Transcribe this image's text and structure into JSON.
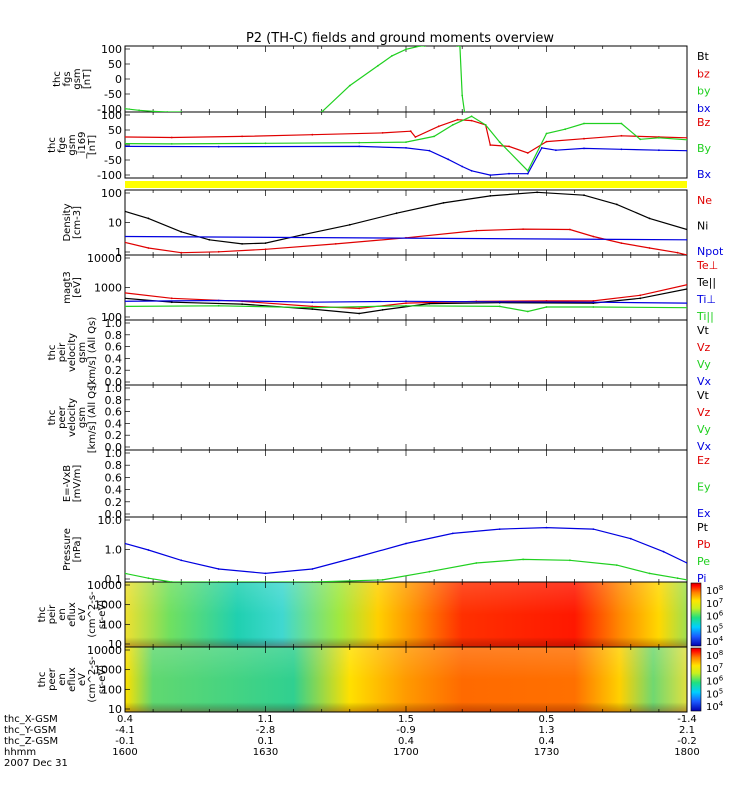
{
  "title": "P2 (TH-C) fields and ground moments overview",
  "colors": {
    "black": "#000000",
    "red": "#e00000",
    "green": "#20d020",
    "blue": "#0000e0",
    "yellow": "#ffff00"
  },
  "panels": [
    {
      "ylabel": [
        "thc",
        "fgs",
        "gsm",
        "[nT]"
      ],
      "ticks": [
        "100",
        "50",
        "0",
        "-50",
        "-100"
      ],
      "legend": [
        {
          "text": "Bt",
          "color": "#000000"
        },
        {
          "text": "bz",
          "color": "#e00000"
        },
        {
          "text": "by",
          "color": "#20d020"
        },
        {
          "text": "bx",
          "color": "#0000e0"
        }
      ]
    },
    {
      "ylabel": [
        "thc",
        "fge",
        "gsm",
        "_i169",
        "[nT]"
      ],
      "ticks": [
        "100",
        "50",
        "0",
        "-50",
        "-100"
      ],
      "legend": [
        {
          "text": "Bz",
          "color": "#e00000"
        },
        {
          "text": "By",
          "color": "#20d020"
        },
        {
          "text": "Bx",
          "color": "#0000e0"
        }
      ]
    },
    {
      "ylabel": [
        "Density",
        "[cm-3]"
      ],
      "ticks": [
        "100",
        "10",
        "1"
      ],
      "legend": [
        {
          "text": "Ne",
          "color": "#e00000"
        },
        {
          "text": "Ni",
          "color": "#000000"
        },
        {
          "text": "Npot",
          "color": "#0000e0"
        }
      ]
    },
    {
      "ylabel": [
        "magt3",
        "[eV]"
      ],
      "ticks": [
        "10000",
        "1000",
        "100"
      ],
      "legend": [
        {
          "text": "Te⊥",
          "color": "#e00000"
        },
        {
          "text": "Te||",
          "color": "#000000"
        },
        {
          "text": "Ti⊥",
          "color": "#0000e0"
        },
        {
          "text": "Ti||",
          "color": "#20d020"
        }
      ]
    },
    {
      "ylabel": [
        "thc",
        "peir",
        "velocity",
        "gsm",
        "[km/s] (All Qs)"
      ],
      "ticks": [
        "1.0",
        "0.8",
        "0.6",
        "0.4",
        "0.2",
        "0.0"
      ],
      "legend": [
        {
          "text": "Vt",
          "color": "#000000"
        },
        {
          "text": "Vz",
          "color": "#e00000"
        },
        {
          "text": "Vy",
          "color": "#20d020"
        },
        {
          "text": "Vx",
          "color": "#0000e0"
        }
      ]
    },
    {
      "ylabel": [
        "thc",
        "peer",
        "velocity",
        "gsm",
        "[km/s] (All Qs)"
      ],
      "ticks": [
        "1.0",
        "0.8",
        "0.6",
        "0.4",
        "0.2",
        "0.0"
      ],
      "legend": [
        {
          "text": "Vt",
          "color": "#000000"
        },
        {
          "text": "Vz",
          "color": "#e00000"
        },
        {
          "text": "Vy",
          "color": "#20d020"
        },
        {
          "text": "Vx",
          "color": "#0000e0"
        }
      ]
    },
    {
      "ylabel": [
        "E=-VxB",
        "[mV/m]"
      ],
      "ticks": [
        "1.0",
        "0.8",
        "0.6",
        "0.4",
        "0.2",
        "0.0"
      ],
      "legend": [
        {
          "text": "Ez",
          "color": "#e00000"
        },
        {
          "text": "Ey",
          "color": "#20d020"
        },
        {
          "text": "Ex",
          "color": "#0000e0"
        }
      ]
    },
    {
      "ylabel": [
        "Pressure",
        "[nPa]"
      ],
      "ticks": [
        "10.0",
        "1.0",
        "0.1"
      ],
      "legend": [
        {
          "text": "Pt",
          "color": "#000000"
        },
        {
          "text": "Pb",
          "color": "#e00000"
        },
        {
          "text": "Pe",
          "color": "#20d020"
        },
        {
          "text": "Pi",
          "color": "#0000e0"
        }
      ]
    },
    {
      "ylabel": [
        "thc",
        "peir",
        "en",
        "eflux",
        "eV",
        "(cm^2-s-",
        "sr-eV)"
      ],
      "ticks": [
        "10000",
        "1000",
        "100",
        "10"
      ],
      "colorbar": [
        "10^8",
        "10^7",
        "10^6",
        "10^5",
        "10^4"
      ]
    },
    {
      "ylabel": [
        "thc",
        "peer",
        "en",
        "eflux",
        "eV",
        "(cm^2-s-",
        "sr-eV)"
      ],
      "ticks": [
        "10000",
        "1000",
        "100",
        "10"
      ],
      "colorbar": [
        "10^8",
        "10^7",
        "10^6",
        "10^5",
        "10^4"
      ]
    }
  ],
  "xaxis": {
    "row_labels": [
      "thc_X-GSM",
      "thc_Y-GSM",
      "thc_Z-GSM",
      "hhmm",
      "2007 Dec 31"
    ],
    "columns": [
      [
        "0.4",
        "-4.1",
        "-0.1",
        "1600"
      ],
      [
        "1.1",
        "-2.8",
        "0.1",
        "1630"
      ],
      [
        "1.5",
        "-0.9",
        "0.4",
        "1700"
      ],
      [
        "0.5",
        "1.3",
        "0.4",
        "1730"
      ],
      [
        "-1.4",
        "2.1",
        "-0.2",
        "1800"
      ]
    ]
  },
  "chart_data": [
    {
      "type": "line",
      "panel": 0,
      "x_unit": "minutes since 16:00",
      "ylim": [
        -100,
        100
      ],
      "series": [
        {
          "name": "by",
          "color": "#20d020",
          "x": [
            0,
            3,
            6,
            9,
            12
          ],
          "y": [
            -90,
            -95,
            -98,
            -100,
            -100
          ]
        },
        {
          "name": "by",
          "color": "#20d020",
          "x": [
            42,
            48,
            54,
            57,
            60,
            63,
            64
          ],
          "y": [
            -100,
            -20,
            40,
            70,
            90,
            100,
            100
          ]
        },
        {
          "name": "by",
          "color": "#20d020",
          "x": [
            71,
            71.5,
            72,
            72.5
          ],
          "y": [
            100,
            100,
            -50,
            -100
          ]
        }
      ]
    },
    {
      "type": "line",
      "panel": 1,
      "x_unit": "minutes since 16:00",
      "ylim": [
        -115,
        115
      ],
      "series": [
        {
          "name": "Bz",
          "color": "#e00000",
          "x": [
            0,
            10,
            25,
            40,
            55,
            61,
            62,
            67,
            71,
            74,
            77,
            78,
            82,
            86,
            90,
            98,
            106,
            114,
            120
          ],
          "y": [
            28,
            26,
            30,
            36,
            42,
            48,
            28,
            65,
            88,
            85,
            70,
            0,
            -5,
            -28,
            12,
            22,
            32,
            28,
            25
          ]
        },
        {
          "name": "By",
          "color": "#20d020",
          "x": [
            0,
            10,
            30,
            50,
            60,
            66,
            70,
            74,
            77,
            80,
            86,
            90,
            94,
            98,
            106,
            110,
            114,
            120
          ],
          "y": [
            5,
            4,
            6,
            8,
            10,
            30,
            70,
            100,
            70,
            10,
            -90,
            40,
            55,
            75,
            75,
            20,
            25,
            18
          ]
        },
        {
          "name": "Bx",
          "color": "#0000e0",
          "x": [
            0,
            20,
            50,
            60,
            65,
            69,
            72,
            74,
            78,
            82,
            86,
            89,
            92,
            98,
            106,
            114,
            120
          ],
          "y": [
            -5,
            -6,
            -5,
            -10,
            -20,
            -50,
            -75,
            -90,
            -105,
            -100,
            -100,
            -10,
            -18,
            -12,
            -15,
            -18,
            -20
          ]
        }
      ]
    },
    {
      "type": "line",
      "panel": 2,
      "x_unit": "minutes since 16:00",
      "ylim": [
        0.4,
        250
      ],
      "yscale": "log",
      "series": [
        {
          "name": "Ni",
          "color": "#000000",
          "x": [
            0,
            5,
            12,
            18,
            25,
            30,
            38,
            48,
            58,
            68,
            78,
            88,
            98,
            105,
            112,
            120
          ],
          "y": [
            30,
            15,
            4,
            1.8,
            1.2,
            1.3,
            3,
            8,
            25,
            70,
            140,
            200,
            150,
            60,
            15,
            5
          ]
        },
        {
          "name": "Ne",
          "color": "#e00000",
          "x": [
            0,
            5,
            12,
            20,
            30,
            45,
            60,
            75,
            85,
            95,
            100,
            106,
            112,
            118,
            120
          ],
          "y": [
            1.4,
            0.8,
            0.5,
            0.55,
            0.7,
            1.2,
            2.2,
            4.5,
            5.2,
            5,
            2.5,
            1.3,
            0.8,
            0.5,
            0.4
          ]
        },
        {
          "name": "Npot",
          "color": "#0000e0",
          "x": [
            0,
            120
          ],
          "y": [
            2.5,
            1.8
          ]
        }
      ]
    },
    {
      "type": "line",
      "panel": 3,
      "x_unit": "minutes since 16:00",
      "ylim": [
        80,
        10000
      ],
      "yscale": "log",
      "series": [
        {
          "name": "Te⊥",
          "color": "#e00000",
          "x": [
            0,
            10,
            25,
            40,
            50,
            60,
            75,
            90,
            100,
            110,
            120
          ],
          "y": [
            600,
            400,
            320,
            220,
            190,
            280,
            320,
            330,
            330,
            500,
            1100
          ]
        },
        {
          "name": "Te||",
          "color": "#000000",
          "x": [
            0,
            10,
            25,
            40,
            50,
            55,
            65,
            80,
            100,
            110,
            120
          ],
          "y": [
            400,
            300,
            260,
            180,
            130,
            170,
            270,
            290,
            280,
            400,
            800
          ]
        },
        {
          "name": "Ti⊥",
          "color": "#0000e0",
          "x": [
            0,
            20,
            40,
            60,
            80,
            100,
            120
          ],
          "y": [
            320,
            340,
            300,
            320,
            310,
            300,
            280
          ]
        },
        {
          "name": "Ti||",
          "color": "#20d020",
          "x": [
            0,
            20,
            40,
            60,
            80,
            86,
            90,
            100,
            120
          ],
          "y": [
            220,
            230,
            200,
            230,
            220,
            150,
            210,
            210,
            200
          ]
        }
      ]
    },
    {
      "type": "line",
      "panel": 7,
      "x_unit": "minutes since 16:00",
      "ylim": [
        0.02,
        20
      ],
      "yscale": "log",
      "series": [
        {
          "name": "Pi",
          "color": "#0000e0",
          "x": [
            0,
            5,
            12,
            20,
            30,
            40,
            50,
            60,
            70,
            80,
            90,
            100,
            108,
            115,
            120
          ],
          "y": [
            1.2,
            0.6,
            0.2,
            0.08,
            0.05,
            0.08,
            0.3,
            1.2,
            3.5,
            5.5,
            6.5,
            5.5,
            2,
            0.5,
            0.15
          ]
        },
        {
          "name": "Pe",
          "color": "#20d020",
          "x": [
            0,
            5,
            10,
            20,
            40,
            55,
            65,
            75,
            85,
            95,
            105,
            112,
            118,
            120
          ],
          "y": [
            0.05,
            0.03,
            0.02,
            0.02,
            0.02,
            0.025,
            0.06,
            0.15,
            0.22,
            0.2,
            0.12,
            0.05,
            0.03,
            0.025
          ]
        }
      ]
    }
  ]
}
